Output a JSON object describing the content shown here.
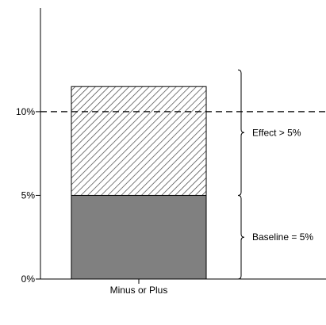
{
  "chart_data": {
    "type": "bar",
    "stacked": true,
    "categories": [
      "Minus or Plus"
    ],
    "series": [
      {
        "values": [
          5
        ],
        "fill": "#808080",
        "pattern": "solid"
      },
      {
        "values": [
          6.5
        ],
        "fill": "#ffffff",
        "pattern": "diagonal-hatch"
      }
    ],
    "y_ticks": [
      {
        "value": 0,
        "label": "0%"
      },
      {
        "value": 5,
        "label": "5%"
      },
      {
        "value": 10,
        "label": "10%"
      }
    ],
    "ylim": [
      0,
      16.2
    ],
    "grid": false,
    "reference_line": {
      "value": 10,
      "style": "dashed"
    },
    "annotations": [
      {
        "label": "Effect > 5%",
        "from": 5,
        "to": 12.5
      },
      {
        "label": "Baseline = 5%",
        "from": 0,
        "to": 5
      }
    ],
    "colors": {
      "axis": "#000000",
      "baseline_bar": "#808080",
      "hatch": "#404040"
    }
  }
}
